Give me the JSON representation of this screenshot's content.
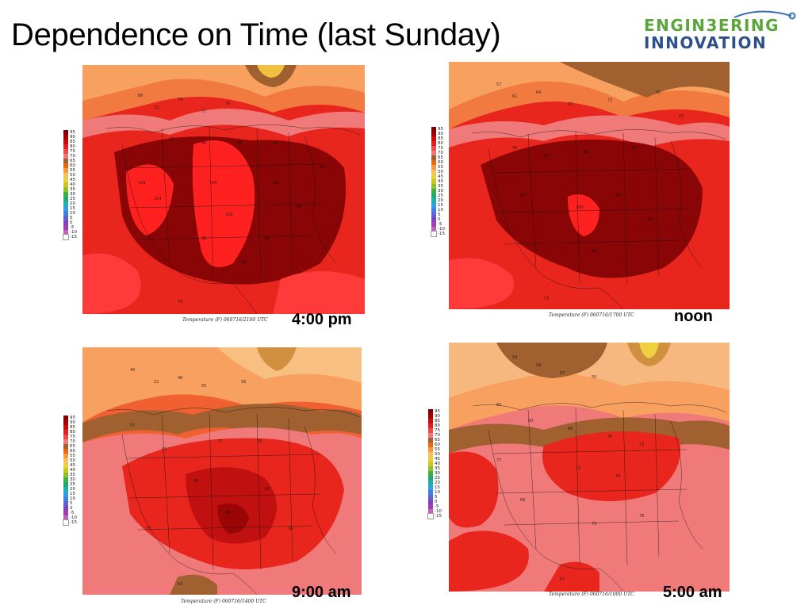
{
  "page": {
    "title": "Dependence on Time (last Sunday)",
    "logo": {
      "line1": "ENGIN3ERING",
      "line2": "INNOVATION"
    }
  },
  "colorbar": {
    "labels": [
      "95",
      "90",
      "85",
      "80",
      "75",
      "70",
      "65",
      "60",
      "55",
      "50",
      "45",
      "40",
      "35",
      "30",
      "25",
      "20",
      "15",
      "10",
      "5",
      "0",
      "-5",
      "-10",
      "-15"
    ],
    "colors": [
      "#7f0000",
      "#a50000",
      "#c80a0a",
      "#e02020",
      "#ee4a4a",
      "#f07a7a",
      "#a06030",
      "#e86a10",
      "#f59a40",
      "#f7c060",
      "#e8d040",
      "#c8c820",
      "#90c030",
      "#40b040",
      "#20a870",
      "#20b0b0",
      "#30a0e0",
      "#4080e0",
      "#6060d0",
      "#8040c0",
      "#a040b0",
      "#c060c0",
      "#ffffff"
    ]
  },
  "panels": [
    {
      "id": "p1",
      "caption": "Temperature (F) 060716/2100 UTC",
      "time_label": "4:00 pm"
    },
    {
      "id": "p2",
      "caption": "Temperature (F) 060716/1700 UTC",
      "time_label": "noon"
    },
    {
      "id": "p3",
      "caption": "Temperature (F) 060716/1400 UTC",
      "time_label": "9:00 am"
    },
    {
      "id": "p4",
      "caption": "Temperature (F) 060716/1000 UTC",
      "time_label": "5:00 am"
    }
  ]
}
